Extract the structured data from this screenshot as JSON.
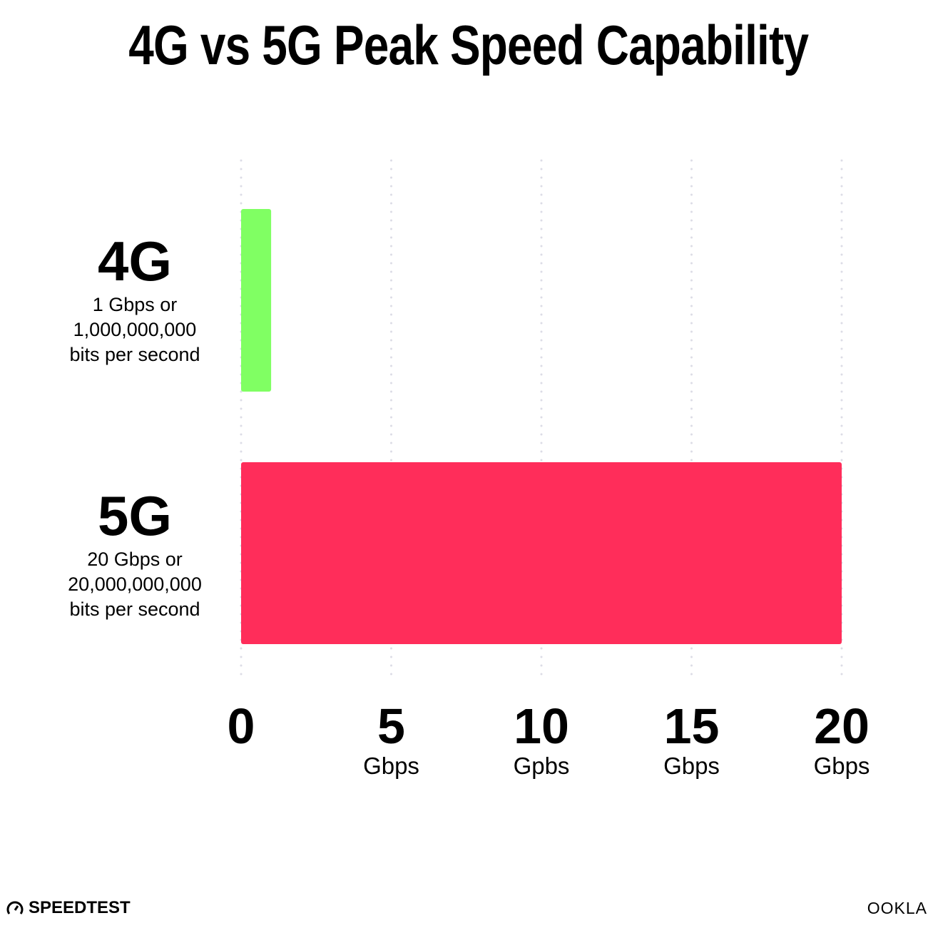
{
  "chart_data": {
    "type": "bar",
    "orientation": "horizontal",
    "title": "4G vs 5G Peak Speed Capability",
    "categories": [
      "4G",
      "5G"
    ],
    "category_sublabels": [
      [
        "1 Gbps or",
        "1,000,000,000",
        "bits per second"
      ],
      [
        "20 Gbps or",
        "20,000,000,000",
        "bits per second"
      ]
    ],
    "values": [
      1,
      20
    ],
    "colors": [
      "#80FF63",
      "#FF2D5A"
    ],
    "xlim": [
      0,
      20
    ],
    "xticks": [
      0,
      5,
      10,
      15,
      20
    ],
    "xtick_labels": [
      "0",
      "5",
      "10",
      "15",
      "20"
    ],
    "xtick_units": [
      "",
      "Gbps",
      "Gpbs",
      "Gbps",
      "Gbps"
    ],
    "grid": "vertical dotted",
    "legend": "none"
  },
  "branding": {
    "left": "SPEEDTEST",
    "right": "OOKLA"
  }
}
